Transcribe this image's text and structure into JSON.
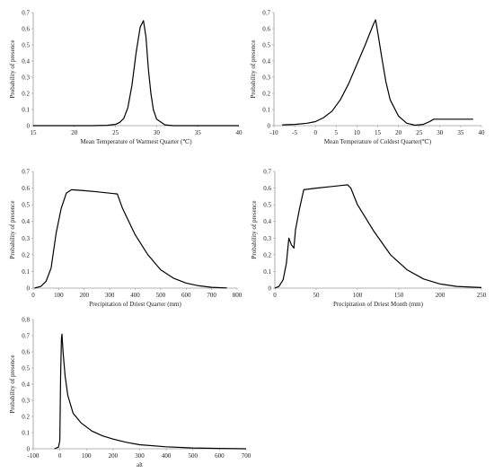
{
  "chart_data": [
    {
      "type": "line",
      "xlabel": "Mean Temperature of Warmest Quarter (℃)",
      "ylabel": "Probability of presence",
      "xlim": [
        15,
        40
      ],
      "ylim": [
        0,
        0.7
      ],
      "xticks": [
        15,
        20,
        25,
        30,
        35,
        40
      ],
      "yticks": [
        0,
        0.1,
        0.2,
        0.3,
        0.4,
        0.5,
        0.6,
        0.7
      ],
      "grid": false,
      "series": [
        {
          "x": [
            15,
            22,
            24,
            25,
            25.5,
            26,
            26.5,
            27,
            27.5,
            28,
            28.4,
            28.7,
            29,
            29.3,
            29.6,
            30,
            31,
            32,
            40
          ],
          "y": [
            0,
            0,
            0.002,
            0.008,
            0.02,
            0.045,
            0.11,
            0.25,
            0.45,
            0.61,
            0.65,
            0.55,
            0.35,
            0.2,
            0.1,
            0.04,
            0.005,
            0,
            0
          ]
        }
      ]
    },
    {
      "type": "line",
      "xlabel": "Mean Temperature of Coldest Quarter(℃)",
      "ylabel": "Probability of presence",
      "xlim": [
        -10,
        40
      ],
      "ylim": [
        0,
        0.7
      ],
      "xticks": [
        -10,
        -5,
        0,
        5,
        10,
        15,
        20,
        25,
        30,
        35,
        40
      ],
      "xtick_labels": [
        "-10",
        "-5",
        "0",
        "5",
        "10",
        "15",
        "20",
        "25",
        "30",
        "35",
        "40"
      ],
      "yticks": [
        0,
        0.1,
        0.2,
        0.3,
        0.4,
        0.5,
        0.6,
        0.7
      ],
      "grid": false,
      "series": [
        {
          "x": [
            -8,
            -5,
            -2,
            0,
            2,
            4,
            6,
            8,
            10,
            12,
            14,
            14.5,
            15,
            16,
            17,
            18,
            20,
            22,
            24,
            26,
            27.5,
            28.5,
            29.5,
            38
          ],
          "y": [
            0.005,
            0.008,
            0.015,
            0.025,
            0.05,
            0.09,
            0.16,
            0.26,
            0.38,
            0.5,
            0.63,
            0.655,
            0.58,
            0.42,
            0.27,
            0.16,
            0.06,
            0.015,
            0.003,
            0.008,
            0.025,
            0.04,
            0.04,
            0.04
          ]
        }
      ]
    },
    {
      "type": "line",
      "xlabel": "Precipitation of Driest Quarter (mm)",
      "ylabel": "Probability of presence",
      "xlim": [
        0,
        800
      ],
      "ylim": [
        0,
        0.7
      ],
      "xticks": [
        0,
        100,
        200,
        300,
        400,
        500,
        600,
        700,
        800
      ],
      "yticks": [
        0,
        0.1,
        0.2,
        0.3,
        0.4,
        0.5,
        0.6,
        0.7
      ],
      "grid": false,
      "series": [
        {
          "x": [
            5,
            30,
            50,
            70,
            90,
            110,
            130,
            150,
            200,
            250,
            330,
            350,
            400,
            450,
            500,
            550,
            600,
            650,
            700,
            760
          ],
          "y": [
            0,
            0.01,
            0.04,
            0.12,
            0.33,
            0.48,
            0.57,
            0.59,
            0.585,
            0.578,
            0.565,
            0.48,
            0.32,
            0.2,
            0.11,
            0.06,
            0.03,
            0.014,
            0.005,
            0.001
          ]
        }
      ]
    },
    {
      "type": "line",
      "xlabel": "Precipitation of Driest Month (mm)",
      "ylabel": "Probability of presence",
      "xlim": [
        0,
        250
      ],
      "ylim": [
        0,
        0.7
      ],
      "xticks": [
        0,
        50,
        100,
        150,
        200,
        250
      ],
      "yticks": [
        0,
        0.1,
        0.2,
        0.3,
        0.4,
        0.5,
        0.6,
        0.7
      ],
      "grid": false,
      "series": [
        {
          "x": [
            0,
            5,
            10,
            14,
            17,
            20,
            23,
            25,
            30,
            35,
            50,
            70,
            88,
            92,
            100,
            120,
            140,
            160,
            180,
            200,
            220,
            250
          ],
          "y": [
            0,
            0.01,
            0.05,
            0.15,
            0.3,
            0.26,
            0.24,
            0.35,
            0.48,
            0.59,
            0.6,
            0.61,
            0.62,
            0.6,
            0.5,
            0.34,
            0.2,
            0.11,
            0.055,
            0.025,
            0.01,
            0.003
          ]
        }
      ]
    },
    {
      "type": "line",
      "xlabel": "alt",
      "ylabel": "Probability of presence",
      "xlim": [
        -100,
        700
      ],
      "ylim": [
        0,
        0.8
      ],
      "xticks": [
        -100,
        0,
        100,
        200,
        300,
        400,
        500,
        600,
        700
      ],
      "yticks": [
        0,
        0.1,
        0.2,
        0.3,
        0.4,
        0.5,
        0.6,
        0.7,
        0.8
      ],
      "grid": false,
      "series": [
        {
          "x": [
            -20,
            -5,
            0,
            3,
            6,
            8,
            12,
            20,
            30,
            50,
            80,
            120,
            160,
            200,
            250,
            300,
            400,
            500,
            600,
            700
          ],
          "y": [
            0,
            0.01,
            0.05,
            0.45,
            0.68,
            0.71,
            0.6,
            0.45,
            0.33,
            0.22,
            0.16,
            0.11,
            0.08,
            0.06,
            0.04,
            0.025,
            0.012,
            0.005,
            0.002,
            0
          ]
        }
      ]
    }
  ]
}
